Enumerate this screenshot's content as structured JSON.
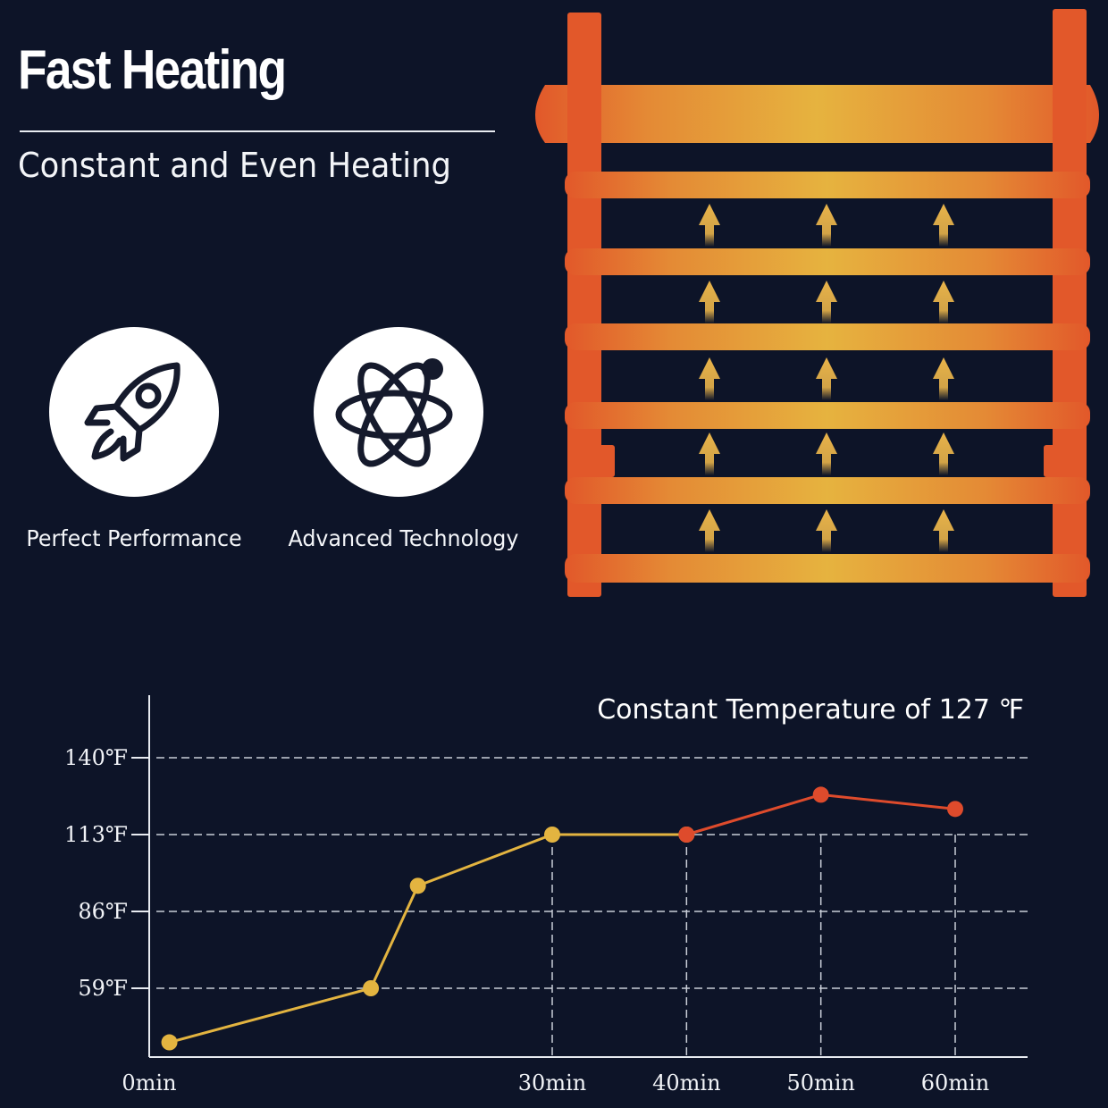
{
  "header": {
    "title": "Fast Heating",
    "subtitle": "Constant and Even Heating"
  },
  "features": [
    {
      "label": "Perfect Performance",
      "icon": "rocket-icon"
    },
    {
      "label": "Advanced Technology",
      "icon": "atom-icon"
    }
  ],
  "colors": {
    "background": "#0d1428",
    "rack_orange": "#e2582a",
    "rack_gold": "#e6b33f",
    "arrow": "#e8b34a",
    "line_warm": "#e3b440",
    "line_hot": "#de4b2c"
  },
  "chart_data": {
    "type": "line",
    "title": "Constant Temperature of 127 ℉",
    "y_tick_labels": [
      "59℉",
      "86℉",
      "113℉",
      "140℉"
    ],
    "y_ticks": [
      59,
      86,
      113,
      140
    ],
    "x_tick_labels": [
      "0min",
      "30min",
      "40min",
      "50min",
      "60min"
    ],
    "x_ticks": [
      0,
      30,
      40,
      50,
      60
    ],
    "xlim": [
      0,
      64
    ],
    "ylim": [
      32,
      150
    ],
    "grid": true,
    "series": [
      {
        "color": "#e3b440",
        "points": [
          [
            1.5,
            40
          ],
          [
            16.5,
            59
          ],
          [
            20,
            95
          ],
          [
            30,
            113
          ],
          [
            40,
            113
          ]
        ]
      },
      {
        "color": "#de4b2c",
        "points": [
          [
            40,
            113
          ],
          [
            50,
            127
          ],
          [
            60,
            122
          ]
        ]
      }
    ]
  }
}
